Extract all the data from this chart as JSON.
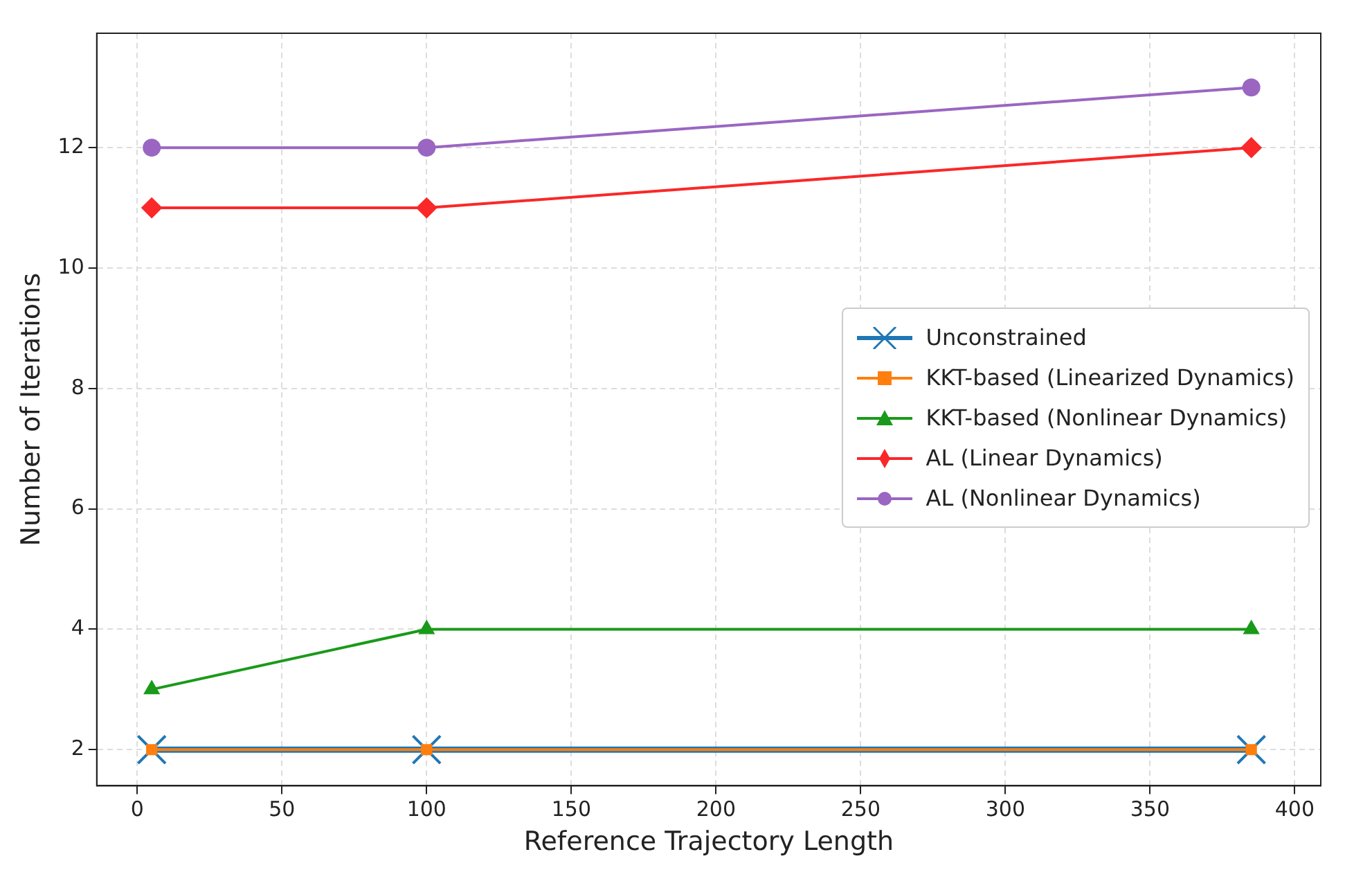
{
  "chart_data": {
    "type": "line",
    "xlabel": "Reference Trajectory Length",
    "ylabel": "Number of Iterations",
    "xlim": [
      -14,
      409
    ],
    "xticks": [
      0,
      50,
      100,
      150,
      200,
      250,
      300,
      350,
      400
    ],
    "ylim": [
      1.4,
      13.9
    ],
    "yticks": [
      2,
      4,
      6,
      8,
      10,
      12
    ],
    "grid": true,
    "legend": "right",
    "line_style": "solid",
    "x": [
      5,
      100,
      385
    ],
    "series": [
      {
        "name": "Unconstrained",
        "color": "#1f77b4",
        "marker": "cross",
        "values": [
          2,
          2,
          2
        ]
      },
      {
        "name": "KKT-based (Linearized Dynamics)",
        "color": "#ff7f0e",
        "marker": "square",
        "values": [
          2,
          2,
          2
        ]
      },
      {
        "name": "KKT-based (Nonlinear Dynamics)",
        "color": "#1a9a1a",
        "marker": "triangle",
        "values": [
          3,
          4,
          4
        ]
      },
      {
        "name": "AL (Linear Dynamics)",
        "color": "#fa2828",
        "marker": "diamond",
        "values": [
          11,
          11,
          12
        ]
      },
      {
        "name": "AL (Nonlinear Dynamics)",
        "color": "#9a66c2",
        "marker": "circle",
        "values": [
          12,
          12,
          13
        ]
      }
    ]
  }
}
